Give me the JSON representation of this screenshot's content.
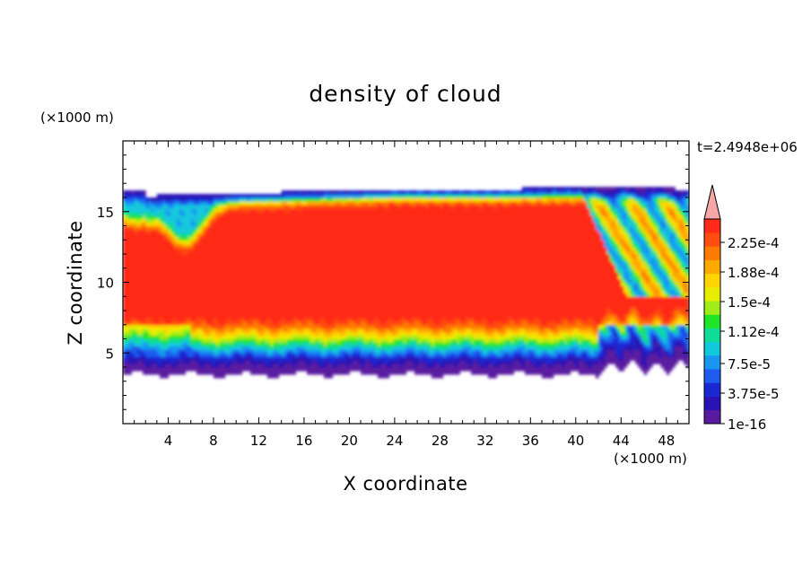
{
  "chart_data": {
    "type": "heatmap",
    "title": "density of cloud",
    "xlabel": "X coordinate",
    "ylabel": "Z coordinate",
    "x_unit": "(×1000 m)",
    "y_unit": "(×1000 m)",
    "time_label": "t=2.4948e+06",
    "xlim": [
      0,
      50
    ],
    "ylim": [
      0,
      20
    ],
    "x_ticks": [
      4,
      8,
      12,
      16,
      20,
      24,
      28,
      32,
      36,
      40,
      44,
      48
    ],
    "y_ticks": [
      5,
      10,
      15
    ],
    "colorbar": {
      "labels": [
        "2.25e-4",
        "1.88e-4",
        "1.5e-4",
        "1.12e-4",
        "7.5e-5",
        "3.75e-5",
        "1e-16"
      ],
      "colors": [
        "#5a1aa0",
        "#2a12b4",
        "#1a28d2",
        "#1e5cf0",
        "#1896f0",
        "#12c8dc",
        "#10dc96",
        "#20e428",
        "#a0ec18",
        "#e8ec00",
        "#ffd400",
        "#ffa800",
        "#ff7a00",
        "#ff4c10",
        "#ff2a18"
      ],
      "extend_color": "#f7a7a7"
    },
    "field": {
      "cloud_bottom_km": 3.5,
      "cloud_top_km": 16.5,
      "peak_density": 0.00024
    }
  }
}
